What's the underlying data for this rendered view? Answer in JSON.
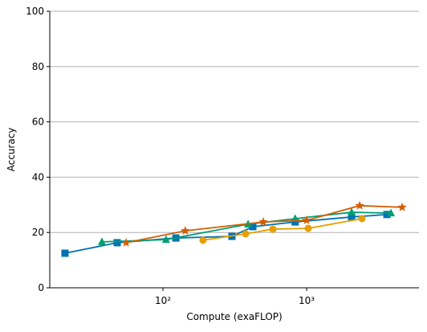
{
  "chart_data": {
    "type": "line",
    "xlabel": "Compute (exaFLOP)",
    "ylabel": "Accuracy",
    "xscale": "log",
    "xlim": [
      16.3,
      6050
    ],
    "xticks": [
      {
        "value": 100,
        "label": "10²"
      },
      {
        "value": 1000,
        "label": "10³"
      }
    ],
    "ylim": [
      0,
      100
    ],
    "yticks": [
      0,
      20,
      40,
      60,
      80,
      100
    ],
    "grid": true,
    "series": [
      {
        "color": "#0072b2",
        "marker": "square",
        "x": [
          20.8,
          48,
          123,
          302,
          422,
          832,
          2056,
          3620
        ],
        "values": [
          12.5,
          16.3,
          18,
          18.6,
          22.1,
          23.8,
          25.6,
          26.5
        ]
      },
      {
        "color": "#009e73",
        "marker": "triangle",
        "x": [
          37.6,
          105,
          391,
          832,
          2056,
          3860
        ],
        "values": [
          16.6,
          17.4,
          23,
          25,
          27.3,
          27
        ]
      },
      {
        "color": "#e69f00",
        "marker": "circle",
        "x": [
          190,
          376,
          582,
          1026,
          2427
        ],
        "values": [
          17.2,
          19.5,
          21.2,
          21.5,
          25
        ]
      },
      {
        "color": "#d55e00",
        "marker": "star",
        "x": [
          55.4,
          143,
          499,
          1000,
          2339,
          4620
        ],
        "values": [
          16.3,
          20.6,
          23.8,
          24.4,
          29.7,
          29.1
        ]
      }
    ]
  }
}
